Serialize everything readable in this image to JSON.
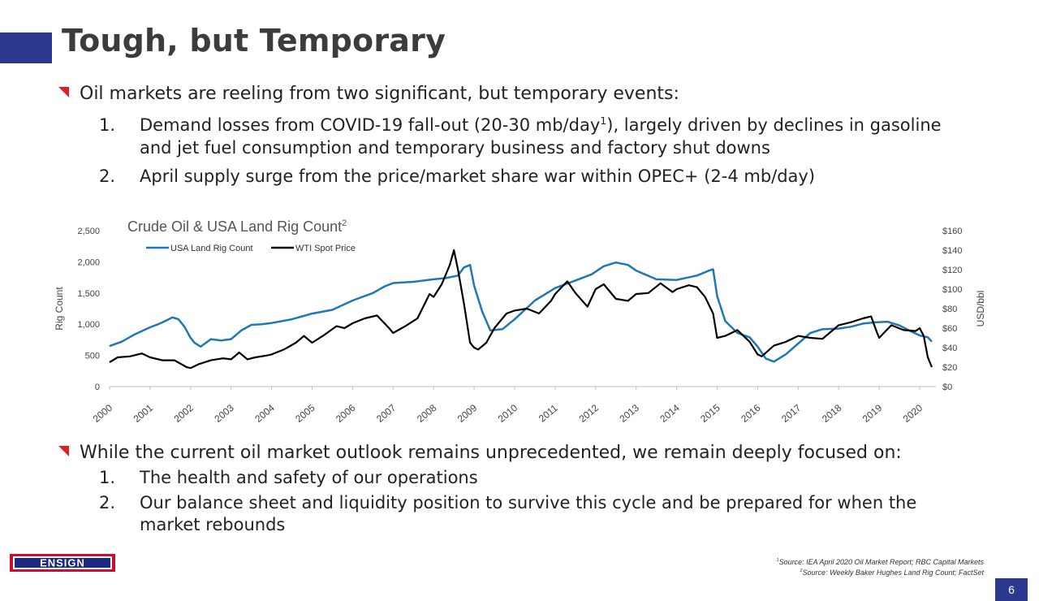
{
  "slide": {
    "title": "Tough, but Temporary",
    "bullet1": "Oil markets are reeling from two significant, but temporary events:",
    "list1": [
      {
        "num": "1.",
        "line1a": "Demand losses from COVID-19 fall-out (20-30 mb/day",
        "sup": "1",
        "line1b": "), largely driven by declines in gasoline",
        "line2": "and jet fuel consumption and temporary business and factory shut downs"
      },
      {
        "num": "2.",
        "line1a": "April supply surge from the price/market share war within OPEC+ (2-4 mb/day)"
      }
    ],
    "bullet2": "While the current oil market outlook remains unprecedented, we remain deeply focused on:",
    "list2": [
      {
        "num": "1.",
        "line1": "The health and safety of our operations"
      },
      {
        "num": "2.",
        "line1": "Our balance sheet and liquidity position to survive this cycle and be prepared for when the",
        "line2": "market rebounds"
      }
    ],
    "logo_text": "ENSIGN",
    "sources": [
      {
        "sup": "1",
        "text": "Source: IEA April 2020 Oil Market Report; RBC Capital Markets"
      },
      {
        "sup": "2",
        "text": "Source: Weekly Baker Hughes Land Rig Count; FactSet"
      }
    ],
    "page_number": "6",
    "colors": {
      "accent": "#2b3a8f",
      "bullet": "#e02020",
      "rig_line": "#1f77b4",
      "wti_line": "#000000"
    }
  },
  "chart_data": {
    "type": "line",
    "title": "Crude Oil & USA Land Rig Count",
    "title_sup": "2",
    "ylabel": "Rig Count",
    "y2label": "USD/bbl",
    "ylim": [
      0,
      2500
    ],
    "y2lim": [
      0,
      160
    ],
    "yticks": [
      "0",
      "500",
      "1,000",
      "1,500",
      "2,000",
      "2,500"
    ],
    "y2ticks": [
      "$0",
      "$20",
      "$40",
      "$60",
      "$80",
      "$100",
      "$120",
      "$140",
      "$160"
    ],
    "xticks": [
      "2000",
      "2001",
      "2002",
      "2003",
      "2004",
      "2005",
      "2006",
      "2007",
      "2008",
      "2009",
      "2010",
      "2011",
      "2012",
      "2013",
      "2014",
      "2015",
      "2016",
      "2017",
      "2018",
      "2019",
      "2020"
    ],
    "xlim": [
      2000,
      2020.4
    ],
    "legend_position": "top-left",
    "series": [
      {
        "name": "USA Land Rig Count",
        "axis": "left",
        "x": [
          2000,
          2000.3,
          2000.6,
          2001,
          2001.2,
          2001.4,
          2001.55,
          2001.7,
          2001.85,
          2002,
          2002.1,
          2002.25,
          2002.5,
          2002.75,
          2003,
          2003.25,
          2003.5,
          2003.75,
          2004,
          2004.5,
          2005,
          2005.5,
          2006,
          2006.5,
          2006.8,
          2007,
          2007.5,
          2008,
          2008.3,
          2008.6,
          2008.75,
          2008.9,
          2009,
          2009.2,
          2009.4,
          2009.7,
          2010,
          2010.5,
          2011,
          2011.5,
          2011.9,
          2012.2,
          2012.5,
          2012.8,
          2013,
          2013.5,
          2014,
          2014.5,
          2014.8,
          2014.9,
          2015,
          2015.2,
          2015.5,
          2015.8,
          2016,
          2016.2,
          2016.4,
          2016.7,
          2017,
          2017.3,
          2017.6,
          2018,
          2018.3,
          2018.6,
          2018.9,
          2019.2,
          2019.5,
          2019.8,
          2020,
          2020.2,
          2020.3
        ],
        "values": [
          650,
          720,
          830,
          950,
          1000,
          1060,
          1110,
          1080,
          960,
          780,
          700,
          640,
          760,
          740,
          760,
          900,
          990,
          1000,
          1020,
          1080,
          1170,
          1230,
          1380,
          1500,
          1610,
          1660,
          1680,
          1720,
          1740,
          1780,
          1910,
          1950,
          1620,
          1200,
          900,
          920,
          1080,
          1380,
          1580,
          1700,
          1800,
          1930,
          1990,
          1950,
          1860,
          1720,
          1710,
          1780,
          1860,
          1880,
          1450,
          1050,
          860,
          790,
          640,
          450,
          400,
          520,
          690,
          860,
          920,
          930,
          960,
          1010,
          1030,
          1040,
          980,
          880,
          820,
          790,
          720
        ]
      },
      {
        "name": "WTI Spot Price",
        "axis": "right",
        "x": [
          2000,
          2000.2,
          2000.5,
          2000.8,
          2001,
          2001.3,
          2001.6,
          2001.9,
          2002,
          2002.2,
          2002.5,
          2002.8,
          2003,
          2003.2,
          2003.4,
          2003.6,
          2003.9,
          2004,
          2004.3,
          2004.6,
          2004.8,
          2005,
          2005.3,
          2005.6,
          2005.8,
          2006,
          2006.3,
          2006.6,
          2006.9,
          2007,
          2007.3,
          2007.6,
          2007.9,
          2008,
          2008.2,
          2008.4,
          2008.5,
          2008.6,
          2008.75,
          2008.9,
          2009,
          2009.1,
          2009.3,
          2009.5,
          2009.8,
          2010,
          2010.3,
          2010.6,
          2010.9,
          2011,
          2011.3,
          2011.5,
          2011.8,
          2012,
          2012.2,
          2012.5,
          2012.8,
          2013,
          2013.3,
          2013.6,
          2013.9,
          2014,
          2014.3,
          2014.5,
          2014.7,
          2014.9,
          2015,
          2015.2,
          2015.5,
          2015.8,
          2016,
          2016.1,
          2016.4,
          2016.7,
          2017,
          2017.3,
          2017.6,
          2018,
          2018.3,
          2018.6,
          2018.8,
          2018.95,
          2019,
          2019.3,
          2019.6,
          2019.9,
          2020,
          2020.1,
          2020.2,
          2020.3
        ],
        "values": [
          25,
          30,
          31,
          34,
          30,
          27,
          27,
          20,
          19,
          23,
          27,
          29,
          28,
          35,
          28,
          30,
          32,
          33,
          38,
          45,
          52,
          45,
          53,
          62,
          60,
          65,
          70,
          73,
          60,
          55,
          62,
          70,
          95,
          92,
          105,
          125,
          140,
          120,
          85,
          45,
          40,
          38,
          45,
          60,
          75,
          78,
          80,
          75,
          88,
          95,
          108,
          96,
          82,
          100,
          105,
          90,
          88,
          95,
          96,
          106,
          97,
          100,
          104,
          102,
          92,
          75,
          50,
          52,
          58,
          46,
          33,
          31,
          42,
          46,
          52,
          50,
          49,
          63,
          66,
          70,
          72,
          55,
          50,
          63,
          58,
          57,
          60,
          52,
          30,
          20
        ]
      }
    ]
  }
}
